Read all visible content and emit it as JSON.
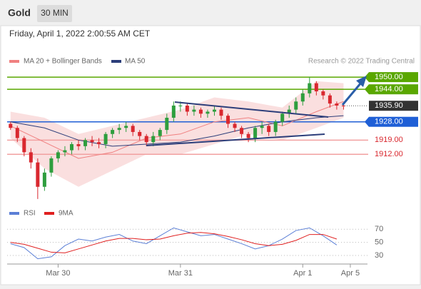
{
  "header": {
    "title": "Gold",
    "interval": "30 MIN",
    "timestamp": "Friday, April 1, 2022 2:00:55 AM CET"
  },
  "chart_data": [
    {
      "type": "candlestick",
      "xlim": [
        -0.5,
        52
      ],
      "ylim": [
        1889.6,
        1954.6
      ],
      "up_color": "#2e9e3e",
      "down_color": "#d9282f",
      "credit": "Research © 2022 Trading Central",
      "open": [
        1927,
        1925,
        1920,
        1913,
        1908,
        1896,
        1903,
        1910,
        1913,
        1914,
        1917,
        1916,
        1919,
        1918,
        1917,
        1922,
        1924,
        1925,
        1926,
        1923,
        1921,
        1918,
        1921,
        1924,
        1930,
        1936,
        1936,
        1933,
        1934,
        1932,
        1933,
        1934,
        1931,
        1927,
        1925,
        1922,
        1920,
        1925,
        1926,
        1923,
        1928,
        1932,
        1934,
        1938,
        1942,
        1947,
        1943,
        1941,
        1937,
        1936
      ],
      "high": [
        1928,
        1926,
        1921,
        1915,
        1910,
        1905,
        1911,
        1914,
        1916,
        1918,
        1919,
        1920,
        1921,
        1920,
        1923,
        1925,
        1927,
        1928,
        1927,
        1924,
        1922,
        1923,
        1925,
        1932,
        1938,
        1938,
        1937,
        1936,
        1935,
        1934,
        1936,
        1935,
        1932,
        1928,
        1926,
        1923,
        1926,
        1928,
        1927,
        1929,
        1933,
        1936,
        1940,
        1944,
        1950,
        1948,
        1944,
        1942,
        1938,
        1937
      ],
      "low": [
        1924,
        1918,
        1911,
        1905,
        1890,
        1894,
        1901,
        1908,
        1911,
        1912,
        1914,
        1914,
        1916,
        1915,
        1915,
        1920,
        1922,
        1923,
        1921,
        1919,
        1916,
        1916,
        1919,
        1922,
        1928,
        1933,
        1931,
        1931,
        1930,
        1930,
        1931,
        1929,
        1925,
        1923,
        1920,
        1918,
        1918,
        1922,
        1921,
        1921,
        1926,
        1930,
        1932,
        1936,
        1940,
        1941,
        1939,
        1935,
        1934,
        1934
      ],
      "close": [
        1925,
        1920,
        1913,
        1908,
        1896,
        1903,
        1910,
        1913,
        1914,
        1917,
        1916,
        1919,
        1918,
        1917,
        1922,
        1924,
        1925,
        1926,
        1923,
        1921,
        1918,
        1921,
        1924,
        1930,
        1936,
        1936,
        1933,
        1934,
        1932,
        1933,
        1934,
        1931,
        1927,
        1925,
        1922,
        1920,
        1925,
        1926,
        1923,
        1928,
        1932,
        1934,
        1938,
        1942,
        1947,
        1943,
        1941,
        1937,
        1936,
        1935.9
      ],
      "band": {
        "color": "#f7c9c9",
        "x": [
          0,
          5,
          10,
          15,
          20,
          25,
          30,
          35,
          40,
          45,
          49
        ],
        "upper": [
          1933,
          1930,
          1922,
          1926,
          1930,
          1934,
          1940,
          1938,
          1935,
          1948,
          1947
        ],
        "lower": [
          1920,
          1905,
          1896,
          1904,
          1912,
          1912,
          1917,
          1922,
          1919,
          1925,
          1930
        ]
      },
      "lines": [
        {
          "name": "MA 20 + Bollinger Bands",
          "color": "#f08080",
          "x": [
            0,
            5,
            10,
            15,
            20,
            25,
            30,
            35,
            40,
            45,
            49
          ],
          "values": [
            1926,
            1918,
            1910,
            1913,
            1920,
            1922,
            1928,
            1930,
            1926,
            1933,
            1938
          ]
        },
        {
          "name": "MA 50",
          "color": "#2c3e7a",
          "x": [
            0,
            5,
            10,
            15,
            20,
            25,
            30,
            35,
            40,
            45,
            49
          ],
          "values": [
            1928,
            1925,
            1919,
            1916,
            1917,
            1918,
            1921,
            1925,
            1928,
            1930,
            1931
          ]
        }
      ],
      "levels": [
        {
          "value": 1950,
          "label": "1950.00",
          "color": "#5aa700",
          "label_style": "box",
          "line_style": "solid"
        },
        {
          "value": 1944,
          "label": "1944.00",
          "color": "#5aa700",
          "label_style": "box",
          "line_style": "solid"
        },
        {
          "value": 1935.9,
          "label": "1935.90",
          "color": "#333333",
          "label_style": "box",
          "line_style": "dotted"
        },
        {
          "value": 1928,
          "label": "1928.00",
          "color": "#1f5fd6",
          "label_style": "box",
          "line_style": "solid"
        },
        {
          "value": 1919,
          "label": "1919.00",
          "color": "#f2a0a0",
          "label_style": "text",
          "line_style": "solid"
        },
        {
          "value": 1912,
          "label": "1912.00",
          "color": "#f2a0a0",
          "label_style": "text",
          "line_style": "solid"
        }
      ]
    },
    {
      "type": "line",
      "xlim": [
        -0.5,
        52
      ],
      "ylim": [
        17,
        80
      ],
      "yticks": [
        30,
        50,
        70
      ],
      "grid": true,
      "xticks": [
        {
          "value": 7,
          "label": "Mar 30"
        },
        {
          "value": 25,
          "label": "Mar 31"
        },
        {
          "value": 43,
          "label": "Apr 1"
        },
        {
          "value": 50,
          "label": "Apr 5"
        }
      ],
      "x": [
        0,
        2,
        4,
        6,
        8,
        10,
        12,
        14,
        16,
        18,
        20,
        22,
        24,
        26,
        28,
        30,
        32,
        34,
        36,
        38,
        40,
        42,
        44,
        46,
        48
      ],
      "series": [
        {
          "name": "RSI",
          "color": "#5b7fd6",
          "values": [
            48,
            42,
            25,
            28,
            45,
            55,
            52,
            58,
            62,
            52,
            48,
            60,
            72,
            66,
            60,
            62,
            55,
            48,
            40,
            45,
            55,
            68,
            72,
            60,
            46
          ]
        },
        {
          "name": "9MA",
          "color": "#e02020",
          "values": [
            50,
            47,
            41,
            35,
            34,
            40,
            46,
            52,
            56,
            56,
            54,
            55,
            60,
            64,
            65,
            63,
            59,
            54,
            48,
            45,
            47,
            53,
            62,
            62,
            55
          ]
        }
      ]
    }
  ]
}
